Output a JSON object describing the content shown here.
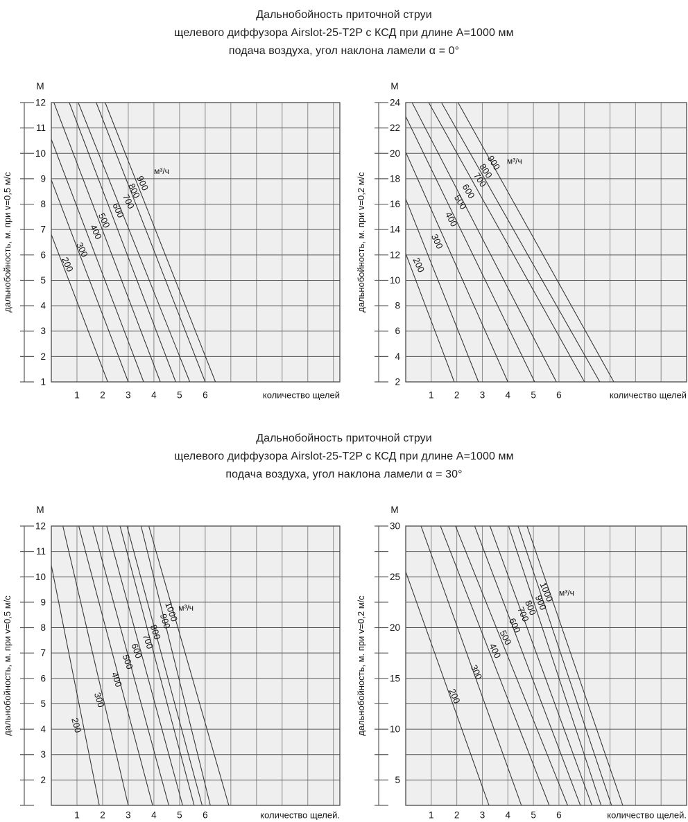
{
  "titles": [
    {
      "lines": [
        "Дальнобойность приточной струи",
        "щелевого диффузора Airslot-25-T2P с КСД при длине А=1000 мм",
        "подача воздуха, угол наклона ламели α = 0°"
      ]
    },
    {
      "lines": [
        "Дальнобойность приточной струи",
        "щелевого диффузора Airslot-25-T2P с КСД при длине А=1000 мм",
        "подача воздуха, угол наклона ламели α = 30°"
      ]
    }
  ],
  "colors": {
    "plot_bg": "#efefef",
    "grid_h": "#565656",
    "grid_v": "#8a8a8a",
    "border": "#4a4a4a",
    "flow_line": "#383838",
    "axis": "#5a5a5a",
    "text": "#141414"
  },
  "chart_data": [
    {
      "type": "line",
      "name": "alpha0-v05",
      "lamella_angle": "0°",
      "terminal_velocity": "0,5 м/с",
      "corner_label": "М",
      "ylabel": "дальнобойность, м. при v=0,5 м/с",
      "xlabel": "количество щелей",
      "flow_unit_label": "м³/ч",
      "flow_unit_pos": [
        4.3,
        9.3
      ],
      "xlim": [
        0,
        11.25
      ],
      "ylim": [
        1,
        12
      ],
      "x_gridlines": [
        1,
        2,
        3,
        4,
        5,
        6,
        7,
        8,
        9,
        10,
        11
      ],
      "x_tick_labels": [
        1,
        2,
        3,
        4,
        5,
        6
      ],
      "y_gridlines": [
        1,
        2,
        3,
        4,
        5,
        6,
        7,
        8,
        9,
        10,
        11,
        12
      ],
      "y_tick_labels": [
        1,
        2,
        3,
        4,
        5,
        6,
        7,
        8,
        9,
        10,
        11,
        12
      ],
      "series": [
        {
          "name": "200",
          "points": [
            [
              0,
              6.8
            ],
            [
              2.2,
              1
            ]
          ],
          "label_pos": [
            0.62,
            5.62
          ]
        },
        {
          "name": "300",
          "points": [
            [
              0,
              8.95
            ],
            [
              3.0,
              1
            ]
          ],
          "label_pos": [
            1.19,
            6.2
          ]
        },
        {
          "name": "400",
          "points": [
            [
              0,
              10.55
            ],
            [
              3.6,
              1
            ]
          ],
          "label_pos": [
            1.73,
            6.9
          ]
        },
        {
          "name": "500",
          "points": [
            [
              0.1,
              12
            ],
            [
              4.25,
              1
            ]
          ],
          "label_pos": [
            2.05,
            7.35
          ]
        },
        {
          "name": "600",
          "points": [
            [
              0.7,
              12
            ],
            [
              4.85,
              1
            ]
          ],
          "label_pos": [
            2.6,
            7.75
          ]
        },
        {
          "name": "700",
          "points": [
            [
              1.05,
              12
            ],
            [
              5.4,
              1
            ]
          ],
          "label_pos": [
            3.0,
            8.1
          ]
        },
        {
          "name": "800",
          "points": [
            [
              1.75,
              12
            ],
            [
              6.0,
              1
            ]
          ],
          "label_pos": [
            3.22,
            8.52
          ]
        },
        {
          "name": "900",
          "points": [
            [
              2.1,
              12
            ],
            [
              6.4,
              1
            ]
          ],
          "label_pos": [
            3.55,
            8.82
          ]
        }
      ]
    },
    {
      "type": "line",
      "name": "alpha0-v02",
      "lamella_angle": "0°",
      "terminal_velocity": "0,2 м/с",
      "corner_label": "М",
      "ylabel": "дальнобойность, м. при v=0,2 м/с",
      "xlabel": "количество щелей",
      "flow_unit_label": "м³/ч",
      "flow_unit_pos": [
        4.26,
        19.4
      ],
      "xlim": [
        0,
        11
      ],
      "ylim": [
        2,
        24
      ],
      "x_gridlines": [
        1,
        2,
        3,
        4,
        5,
        6,
        7,
        8,
        9,
        10,
        11
      ],
      "x_tick_labels": [
        1,
        2,
        3,
        4,
        5,
        6
      ],
      "y_gridlines": [
        2,
        4,
        6,
        8,
        10,
        12,
        14,
        16,
        18,
        20,
        22,
        24
      ],
      "y_tick_labels": [
        2,
        4,
        6,
        8,
        10,
        12,
        14,
        16,
        18,
        20,
        22,
        24
      ],
      "series": [
        {
          "name": "200",
          "points": [
            [
              0,
              12.1
            ],
            [
              1.9,
              2
            ]
          ],
          "label_pos": [
            0.5,
            11.2
          ]
        },
        {
          "name": "300",
          "points": [
            [
              0,
              16.4
            ],
            [
              2.85,
              2
            ]
          ],
          "label_pos": [
            1.22,
            13.05
          ]
        },
        {
          "name": "400",
          "points": [
            [
              0,
              20.1
            ],
            [
              4.0,
              2
            ]
          ],
          "label_pos": [
            1.77,
            14.8
          ]
        },
        {
          "name": "500",
          "points": [
            [
              0,
              22.9
            ],
            [
              5.05,
              2
            ]
          ],
          "label_pos": [
            2.13,
            16.15
          ]
        },
        {
          "name": "600",
          "points": [
            [
              0.25,
              24
            ],
            [
              5.9,
              2
            ]
          ],
          "label_pos": [
            2.45,
            17.0
          ]
        },
        {
          "name": "700",
          "points": [
            [
              0.9,
              24
            ],
            [
              7.0,
              2
            ]
          ],
          "label_pos": [
            2.9,
            17.9
          ]
        },
        {
          "name": "800",
          "points": [
            [
              1.4,
              24
            ],
            [
              7.6,
              2
            ]
          ],
          "label_pos": [
            3.13,
            18.6
          ]
        },
        {
          "name": "900",
          "points": [
            [
              2.05,
              24
            ],
            [
              8.15,
              2
            ]
          ],
          "label_pos": [
            3.44,
            19.25
          ]
        }
      ]
    },
    {
      "type": "line",
      "name": "alpha30-v05",
      "lamella_angle": "30°",
      "terminal_velocity": "0,5 м/с",
      "corner_label": "М",
      "ylabel": "дальнобойность, м. при v=0,5 м/с",
      "xlabel": "количество щелей.",
      "flow_unit_label": "м³/ч",
      "flow_unit_pos": [
        5.25,
        8.78
      ],
      "xlim": [
        0,
        11.25
      ],
      "ylim": [
        1,
        12
      ],
      "x_gridlines": [
        1,
        2,
        3,
        4,
        5,
        6,
        7,
        8,
        9,
        10,
        11
      ],
      "x_tick_labels": [
        1,
        2,
        3,
        4,
        5,
        6
      ],
      "y_gridlines": [
        1,
        2,
        3,
        4,
        5,
        6,
        7,
        8,
        9,
        10,
        11,
        12
      ],
      "y_tick_labels": [
        2,
        3,
        4,
        5,
        6,
        7,
        8,
        9,
        10,
        11,
        12
      ],
      "series": [
        {
          "name": "200",
          "points": [
            [
              0,
              10.45
            ],
            [
              1.87,
              1
            ]
          ],
          "label_pos": [
            0.97,
            4.15
          ]
        },
        {
          "name": "300",
          "points": [
            [
              0.45,
              12
            ],
            [
              3.0,
              1
            ]
          ],
          "label_pos": [
            1.86,
            5.15
          ]
        },
        {
          "name": "400",
          "points": [
            [
              1.07,
              12
            ],
            [
              3.95,
              1
            ]
          ],
          "label_pos": [
            2.54,
            5.95
          ]
        },
        {
          "name": "500",
          "points": [
            [
              1.62,
              12
            ],
            [
              4.58,
              1
            ]
          ],
          "label_pos": [
            2.97,
            6.65
          ]
        },
        {
          "name": "600",
          "points": [
            [
              2.16,
              12
            ],
            [
              5.12,
              1
            ]
          ],
          "label_pos": [
            3.32,
            7.08
          ]
        },
        {
          "name": "700",
          "points": [
            [
              2.68,
              12
            ],
            [
              5.57,
              1
            ]
          ],
          "label_pos": [
            3.76,
            7.45
          ]
        },
        {
          "name": "800",
          "points": [
            [
              2.95,
              12
            ],
            [
              5.88,
              1
            ]
          ],
          "label_pos": [
            4.05,
            7.82
          ]
        },
        {
          "name": "900",
          "points": [
            [
              3.5,
              12
            ],
            [
              6.2,
              1
            ]
          ],
          "label_pos": [
            4.43,
            8.25
          ]
        },
        {
          "name": "1000",
          "points": [
            [
              3.8,
              12
            ],
            [
              6.92,
              1
            ]
          ],
          "label_pos": [
            4.67,
            8.62
          ]
        }
      ]
    },
    {
      "type": "line",
      "name": "alpha30-v02",
      "lamella_angle": "30°",
      "terminal_velocity": "0,2 м/с",
      "corner_label": "М",
      "ylabel": "дальнобойность, м. при v=0,2 м/с",
      "xlabel": "количество щелей.",
      "flow_unit_label": "м³/ч",
      "flow_unit_pos": [
        6.3,
        23.4
      ],
      "xlim": [
        0,
        11
      ],
      "ylim": [
        2.5,
        30
      ],
      "x_gridlines": [
        1,
        2,
        3,
        4,
        5,
        6,
        7,
        8,
        9,
        10,
        11
      ],
      "x_tick_labels": [
        1,
        2,
        3,
        4,
        5,
        6
      ],
      "y_gridlines": [
        2.5,
        5,
        7.5,
        10,
        12.5,
        15,
        17.5,
        20,
        22.5,
        25,
        27.5,
        30
      ],
      "y_tick_labels": [
        5,
        10,
        15,
        20,
        25,
        30
      ],
      "series": [
        {
          "name": "200",
          "points": [
            [
              0,
              25.5
            ],
            [
              3.26,
              2.5
            ]
          ],
          "label_pos": [
            1.9,
            13.25
          ]
        },
        {
          "name": "300",
          "points": [
            [
              0.6,
              30
            ],
            [
              4.53,
              2.5
            ]
          ],
          "label_pos": [
            2.76,
            15.6
          ]
        },
        {
          "name": "400",
          "points": [
            [
              1.36,
              30
            ],
            [
              5.62,
              2.5
            ]
          ],
          "label_pos": [
            3.49,
            17.7
          ]
        },
        {
          "name": "500",
          "points": [
            [
              1.95,
              30
            ],
            [
              6.34,
              2.5
            ]
          ],
          "label_pos": [
            3.9,
            19.0
          ]
        },
        {
          "name": "600",
          "points": [
            [
              2.7,
              30
            ],
            [
              6.84,
              2.5
            ]
          ],
          "label_pos": [
            4.26,
            20.2
          ]
        },
        {
          "name": "700",
          "points": [
            [
              3.3,
              30
            ],
            [
              7.29,
              2.5
            ]
          ],
          "label_pos": [
            4.59,
            21.3
          ]
        },
        {
          "name": "800",
          "points": [
            [
              4.03,
              30
            ],
            [
              7.65,
              2.5
            ]
          ],
          "label_pos": [
            4.88,
            21.95
          ]
        },
        {
          "name": "900",
          "points": [
            [
              4.4,
              30
            ],
            [
              8.06,
              2.5
            ]
          ],
          "label_pos": [
            5.28,
            22.45
          ]
        },
        {
          "name": "1000",
          "points": [
            [
              4.75,
              30
            ],
            [
              8.5,
              2.5
            ]
          ],
          "label_pos": [
            5.5,
            23.5
          ]
        }
      ]
    }
  ]
}
